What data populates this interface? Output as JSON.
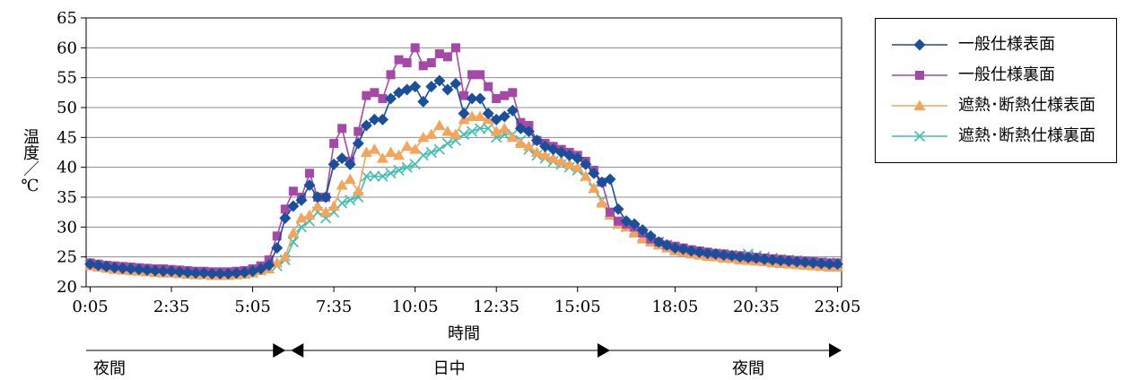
{
  "chart_data": {
    "type": "line",
    "title": "",
    "xlabel": "時間",
    "ylabel": "温度／℃",
    "ylim": [
      20,
      65
    ],
    "yticks": [
      20,
      25,
      30,
      35,
      40,
      45,
      50,
      55,
      60,
      65
    ],
    "x_tick_labels": [
      "0:05",
      "2:35",
      "5:05",
      "7:35",
      "10:05",
      "12:35",
      "15:05",
      "18:05",
      "20:35",
      "23:05"
    ],
    "x_ticks": [
      "0:05",
      "2:35",
      "5:05",
      "7:35",
      "10:05",
      "12:35",
      "15:05",
      "18:05",
      "20:35",
      "23:05"
    ],
    "grid": "horizontal",
    "legend_position": "right",
    "x": [
      "0:05",
      "0:20",
      "0:35",
      "0:50",
      "1:05",
      "1:20",
      "1:35",
      "1:50",
      "2:05",
      "2:20",
      "2:35",
      "2:50",
      "3:05",
      "3:20",
      "3:35",
      "3:50",
      "4:05",
      "4:20",
      "4:35",
      "4:50",
      "5:05",
      "5:20",
      "5:35",
      "5:50",
      "6:05",
      "6:20",
      "6:35",
      "6:50",
      "7:05",
      "7:20",
      "7:35",
      "7:50",
      "8:05",
      "8:20",
      "8:35",
      "8:50",
      "9:05",
      "9:20",
      "9:35",
      "9:50",
      "10:05",
      "10:20",
      "10:35",
      "10:50",
      "11:05",
      "11:20",
      "11:35",
      "11:50",
      "12:05",
      "12:20",
      "12:35",
      "12:50",
      "13:05",
      "13:20",
      "13:35",
      "13:50",
      "14:05",
      "14:20",
      "14:35",
      "14:50",
      "15:05",
      "15:20",
      "15:35",
      "15:50",
      "16:05",
      "16:20",
      "16:35",
      "16:50",
      "17:05",
      "17:20",
      "17:35",
      "17:50",
      "18:05",
      "18:20",
      "18:35",
      "18:50",
      "19:05",
      "19:20",
      "19:35",
      "19:50",
      "20:05",
      "20:20",
      "20:35",
      "20:50",
      "21:05",
      "21:20",
      "21:35",
      "21:50",
      "22:05",
      "22:20",
      "22:35",
      "22:50",
      "23:05"
    ],
    "series": [
      {
        "name": "一般仕様表面",
        "color": "#1a4f9c",
        "marker": "diamond",
        "values": [
          23.8,
          23.6,
          23.4,
          23.2,
          23.1,
          23.0,
          22.9,
          22.8,
          22.7,
          22.6,
          22.6,
          22.5,
          22.4,
          22.3,
          22.3,
          22.2,
          22.2,
          22.2,
          22.3,
          22.4,
          22.6,
          23.0,
          23.6,
          26.5,
          31.5,
          33.5,
          34.5,
          37.0,
          35.0,
          35.0,
          40.5,
          41.5,
          40.5,
          44.0,
          47.0,
          48.0,
          48.0,
          51.5,
          52.5,
          53.0,
          53.5,
          51.0,
          53.5,
          54.5,
          53.0,
          54.0,
          49.0,
          51.5,
          51.5,
          49.0,
          48.0,
          48.5,
          49.5,
          46.5,
          46.0,
          44.5,
          43.5,
          43.0,
          42.5,
          42.0,
          41.5,
          40.5,
          39.0,
          37.5,
          38.0,
          33.0,
          31.0,
          30.5,
          29.5,
          28.5,
          27.5,
          27.0,
          26.5,
          26.3,
          26.0,
          25.8,
          25.6,
          25.5,
          25.3,
          25.2,
          25.0,
          24.9,
          24.8,
          24.6,
          24.5,
          24.4,
          24.3,
          24.2,
          24.1,
          24.0,
          23.9,
          23.8,
          23.8
        ]
      },
      {
        "name": "一般仕様裏面",
        "color": "#a648a8",
        "marker": "square",
        "values": [
          24.0,
          23.8,
          23.6,
          23.5,
          23.4,
          23.3,
          23.2,
          23.1,
          23.0,
          23.0,
          22.9,
          22.8,
          22.7,
          22.6,
          22.6,
          22.5,
          22.5,
          22.5,
          22.6,
          22.7,
          23.0,
          23.5,
          24.5,
          28.5,
          33.0,
          36.0,
          35.0,
          39.0,
          35.0,
          35.0,
          44.0,
          46.5,
          41.0,
          46.0,
          52.0,
          52.5,
          51.5,
          55.5,
          58.0,
          57.5,
          60.0,
          57.0,
          57.5,
          59.0,
          58.5,
          60.0,
          52.0,
          55.5,
          55.5,
          53.5,
          51.5,
          52.0,
          52.5,
          47.5,
          47.0,
          44.5,
          44.0,
          43.5,
          43.0,
          42.5,
          42.0,
          41.0,
          39.5,
          37.5,
          32.5,
          31.0,
          30.5,
          30.0,
          29.0,
          28.0,
          27.5,
          27.0,
          26.8,
          26.5,
          26.2,
          26.0,
          25.8,
          25.6,
          25.5,
          25.3,
          25.2,
          25.0,
          24.9,
          24.8,
          24.7,
          24.6,
          24.5,
          24.4,
          24.3,
          24.2,
          24.1,
          24.0,
          24.0
        ]
      },
      {
        "name": "遮熱･断熱仕様表面",
        "color": "#f5a45a",
        "marker": "triangle",
        "values": [
          23.5,
          23.3,
          23.1,
          22.9,
          22.8,
          22.7,
          22.6,
          22.5,
          22.4,
          22.3,
          22.3,
          22.2,
          22.1,
          22.0,
          22.0,
          21.9,
          21.9,
          21.9,
          22.0,
          22.1,
          22.3,
          22.7,
          23.0,
          24.0,
          25.0,
          29.0,
          31.5,
          32.0,
          33.5,
          32.5,
          33.5,
          37.0,
          38.0,
          36.0,
          42.5,
          43.0,
          41.5,
          42.5,
          42.0,
          43.5,
          43.0,
          45.0,
          45.5,
          47.0,
          46.0,
          45.5,
          48.0,
          48.5,
          48.5,
          48.0,
          46.0,
          46.5,
          45.0,
          44.0,
          43.5,
          42.5,
          42.0,
          41.5,
          41.0,
          40.5,
          40.0,
          38.5,
          36.5,
          34.0,
          32.0,
          30.5,
          30.0,
          29.0,
          28.0,
          27.5,
          27.0,
          26.5,
          26.0,
          25.8,
          25.5,
          25.3,
          25.1,
          25.0,
          24.8,
          24.7,
          24.5,
          24.4,
          24.3,
          24.2,
          24.0,
          23.9,
          23.8,
          23.7,
          23.6,
          23.5,
          23.4,
          23.3,
          23.3
        ]
      },
      {
        "name": "遮熱･断熱仕様裏面",
        "color": "#3fbfb0",
        "marker": "x",
        "values": [
          23.6,
          23.4,
          23.2,
          23.0,
          22.9,
          22.8,
          22.7,
          22.6,
          22.5,
          22.4,
          22.4,
          22.3,
          22.2,
          22.1,
          22.1,
          22.0,
          22.0,
          22.0,
          22.1,
          22.2,
          22.4,
          22.8,
          23.2,
          23.5,
          24.5,
          27.5,
          30.0,
          31.0,
          32.5,
          31.5,
          32.5,
          34.0,
          34.5,
          35.0,
          38.5,
          38.5,
          38.5,
          39.0,
          39.5,
          40.0,
          40.5,
          42.0,
          42.5,
          43.0,
          44.0,
          44.5,
          45.5,
          46.0,
          46.5,
          46.5,
          45.0,
          45.5,
          45.5,
          44.5,
          43.0,
          42.0,
          41.5,
          41.0,
          40.5,
          40.0,
          39.5,
          38.5,
          36.5,
          34.5,
          32.5,
          30.5,
          30.0,
          29.5,
          28.5,
          28.0,
          27.5,
          27.0,
          26.5,
          26.2,
          26.0,
          25.8,
          25.6,
          25.5,
          25.4,
          25.3,
          25.2,
          25.5,
          25.2,
          25.0,
          24.8,
          24.6,
          24.5,
          24.4,
          24.3,
          24.2,
          24.1,
          24.0,
          24.0
        ]
      }
    ],
    "periods": [
      {
        "label": "夜間",
        "start": "0:05",
        "end": "6:05"
      },
      {
        "label": "日中",
        "start": "6:05",
        "end": "16:05"
      },
      {
        "label": "夜間",
        "start": "16:05",
        "end": "23:05"
      }
    ]
  }
}
